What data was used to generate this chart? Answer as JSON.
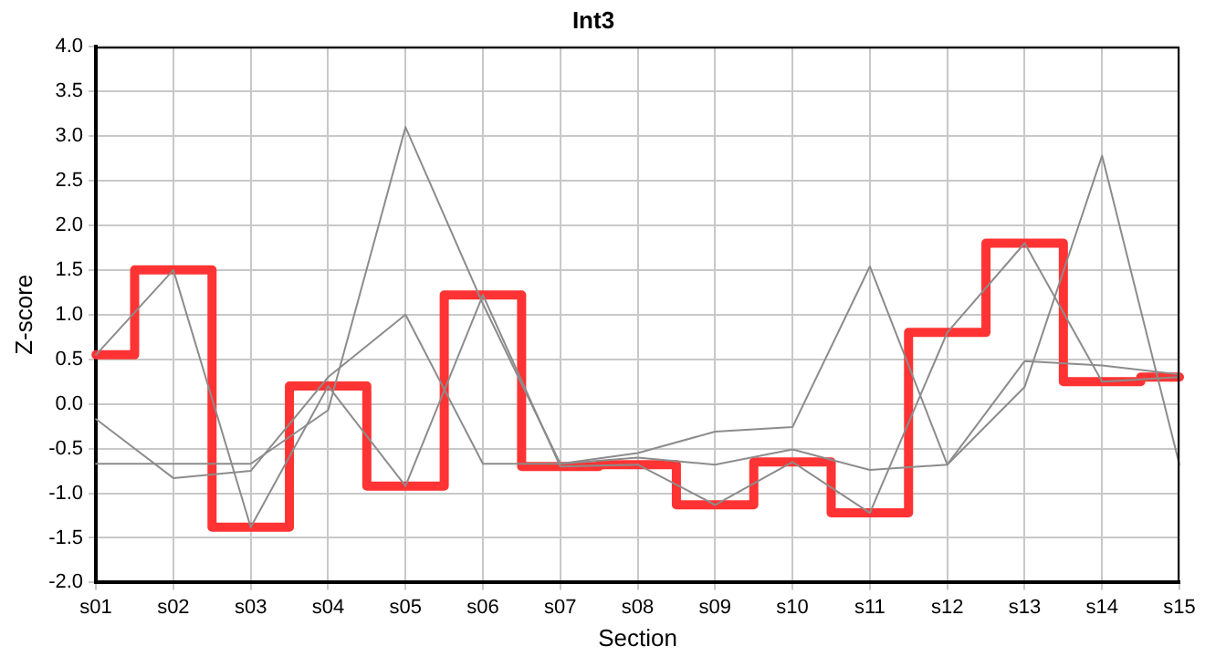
{
  "chart_data": {
    "type": "line",
    "title": "Int3",
    "xlabel": "Section",
    "ylabel": "Z-score",
    "categories": [
      "s01",
      "s02",
      "s03",
      "s04",
      "s05",
      "s06",
      "s07",
      "s08",
      "s09",
      "s10",
      "s11",
      "s12",
      "s13",
      "s14",
      "s15"
    ],
    "series": [
      {
        "type": "line",
        "color": "#8c8c8c",
        "values": [
          0.55,
          1.5,
          -1.38,
          0.2,
          -0.92,
          1.22,
          -0.7,
          -0.68,
          -1.13,
          -0.65,
          -1.22,
          0.8,
          1.8,
          0.25,
          0.3
        ]
      },
      {
        "type": "line",
        "color": "#8c8c8c",
        "values": [
          -0.17,
          -0.83,
          -0.75,
          0.3,
          1.0,
          -0.67,
          -0.67,
          -0.6,
          -0.68,
          -0.51,
          -0.74,
          -0.68,
          0.48,
          0.43,
          0.33
        ]
      },
      {
        "type": "line",
        "color": "#8c8c8c",
        "values": [
          -0.67,
          -0.67,
          -0.67,
          -0.07,
          3.1,
          1.12,
          -0.67,
          -0.55,
          -0.31,
          -0.26,
          1.54,
          -0.68,
          0.19,
          2.78,
          -0.68
        ]
      },
      {
        "type": "step",
        "color": "#ff3333",
        "values": [
          0.55,
          1.5,
          -1.38,
          0.2,
          -0.92,
          1.22,
          -0.7,
          -0.68,
          -1.13,
          -0.65,
          -1.22,
          0.8,
          1.8,
          0.25,
          0.3
        ]
      }
    ],
    "ylim": [
      -2,
      4
    ],
    "yticks": [
      {
        "value": -2,
        "label": "-2.0"
      },
      {
        "value": -1.5,
        "label": "-1.5"
      },
      {
        "value": -1,
        "label": "-1.0"
      },
      {
        "value": -0.5,
        "label": "-0.5"
      },
      {
        "value": 0,
        "label": "0.0"
      },
      {
        "value": 0.5,
        "label": "0.5"
      },
      {
        "value": 1,
        "label": "1.0"
      },
      {
        "value": 1.5,
        "label": "1.5"
      },
      {
        "value": 2,
        "label": "2.0"
      },
      {
        "value": 2.5,
        "label": "2.5"
      },
      {
        "value": 3,
        "label": "3.0"
      },
      {
        "value": 3.5,
        "label": "3.5"
      },
      {
        "value": 4,
        "label": "4.0"
      }
    ],
    "grid": true,
    "legend": false,
    "marker": "none",
    "line_style": "solid"
  }
}
